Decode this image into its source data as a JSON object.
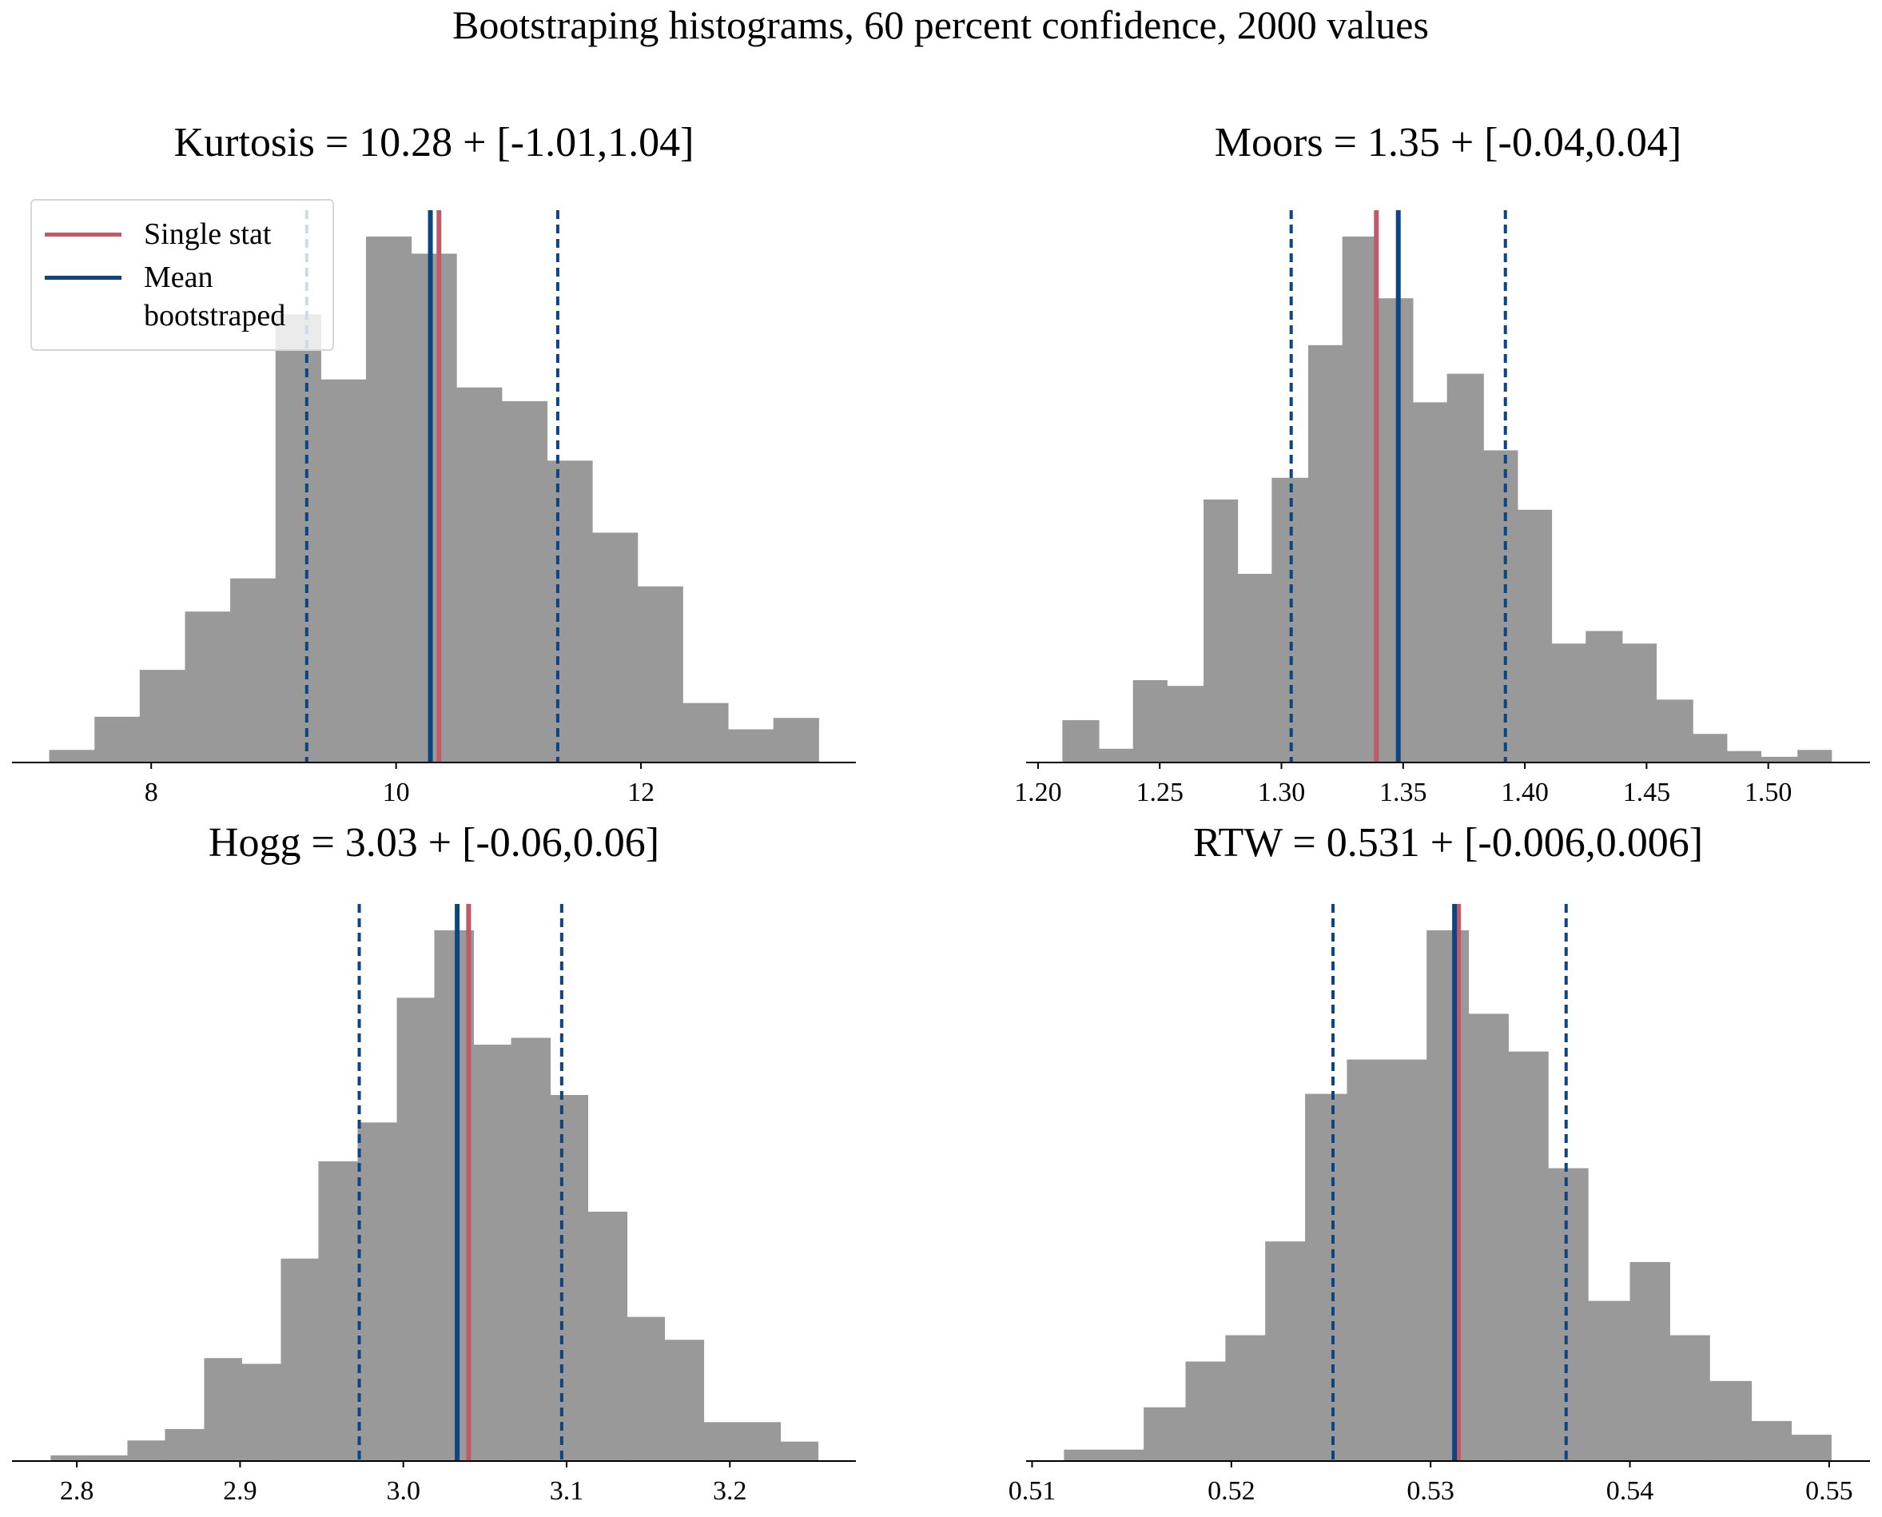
{
  "title": "Bootstraping histograms, 60 percent confidence, 2000 values",
  "colors": {
    "bars": "#999999",
    "single_stat": "#c05a68",
    "mean": "#0b4582"
  },
  "chart_data": [
    {
      "type": "histogram",
      "title": "Kurtosis = 10.28 + [-1.01,1.04]",
      "bins": [
        7.167,
        7.537,
        7.906,
        8.276,
        8.645,
        9.015,
        9.385,
        9.754,
        10.124,
        10.493,
        10.863,
        11.233,
        11.602,
        11.972,
        12.341,
        12.711,
        13.081,
        13.451
      ],
      "values": [
        11,
        40,
        81,
        132,
        161,
        392,
        335,
        460,
        445,
        328,
        316,
        264,
        201,
        154,
        52,
        29,
        39
      ],
      "xlim": [
        6.863,
        13.755
      ],
      "xticks": [
        8,
        10,
        12
      ],
      "ylim": [
        0,
        483
      ],
      "single_stat": 10.35,
      "mean": 10.28,
      "interval": [
        9.27,
        11.32
      ],
      "legend": {
        "loc": "upper left",
        "entries": [
          {
            "label": "Single stat",
            "line": "single_stat"
          },
          {
            "label": "Mean bootstraped",
            "line": "mean"
          }
        ]
      }
    },
    {
      "type": "histogram",
      "title": "Moors = 1.35 + [-0.04,0.04]",
      "bins": [
        1.21,
        1.225,
        1.239,
        1.253,
        1.268,
        1.282,
        1.296,
        1.311,
        1.325,
        1.339,
        1.354,
        1.368,
        1.383,
        1.397,
        1.411,
        1.425,
        1.44,
        1.454,
        1.469,
        1.483,
        1.497,
        1.512,
        1.526
      ],
      "values": [
        37,
        12,
        72,
        67,
        230,
        165,
        249,
        365,
        460,
        406,
        315,
        340,
        273,
        221,
        104,
        115,
        104,
        55,
        25,
        10,
        5,
        11
      ],
      "xlim": [
        1.1951,
        1.5418
      ],
      "xticks": [
        {
          "value": 1.2,
          "label": "1.20"
        },
        {
          "value": 1.25,
          "label": "1.25"
        },
        {
          "value": 1.3,
          "label": "1.30"
        },
        {
          "value": 1.35,
          "label": "1.35"
        },
        {
          "value": 1.4,
          "label": "1.40"
        },
        {
          "value": 1.45,
          "label": "1.45"
        },
        {
          "value": 1.5,
          "label": "1.50"
        }
      ],
      "ylim": [
        0,
        483
      ],
      "single_stat": 1.339,
      "mean": 1.348,
      "interval": [
        1.304,
        1.392
      ]
    },
    {
      "type": "histogram",
      "title": "Hogg = 3.03 + [-0.06,0.06]",
      "bins": [
        2.784,
        2.807,
        2.831,
        2.854,
        2.878,
        2.901,
        2.925,
        2.948,
        2.972,
        2.996,
        3.019,
        3.043,
        3.066,
        3.09,
        3.113,
        3.137,
        3.16,
        3.184,
        3.207,
        3.231,
        3.254
      ],
      "values": [
        5,
        5,
        18,
        28,
        90,
        85,
        177,
        262,
        296,
        405,
        464,
        364,
        370,
        320,
        218,
        126,
        106,
        34,
        34,
        17
      ],
      "xlim": [
        2.7603,
        3.2772
      ],
      "xticks": [
        2.8,
        2.9,
        {
          "value": 3,
          "label": "3.0"
        },
        3.1,
        3.2
      ],
      "ylim": [
        0,
        487
      ],
      "single_stat": 3.04,
      "mean": 3.033,
      "interval": [
        2.973,
        3.097
      ]
    },
    {
      "type": "histogram",
      "title": "RTW = 0.531 + [-0.006,0.006]",
      "bins": [
        0.5116,
        0.5136,
        0.5156,
        0.5177,
        0.5197,
        0.5217,
        0.5237,
        0.5258,
        0.5278,
        0.5298,
        0.5319,
        0.5339,
        0.5359,
        0.5379,
        0.54,
        0.542,
        0.544,
        0.5461,
        0.5481,
        0.5501
      ],
      "values": [
        10,
        10,
        47,
        87,
        110,
        192,
        321,
        351,
        351,
        464,
        391,
        358,
        256,
        140,
        174,
        110,
        70,
        35,
        23
      ],
      "xlim": [
        0.5097,
        0.55205
      ],
      "xticks": [
        0.51,
        0.52,
        0.53,
        0.54,
        0.55
      ],
      "ylim": [
        0,
        487
      ],
      "single_stat": 0.5314,
      "mean": 0.5312,
      "interval": [
        0.5251,
        0.5368
      ]
    }
  ]
}
